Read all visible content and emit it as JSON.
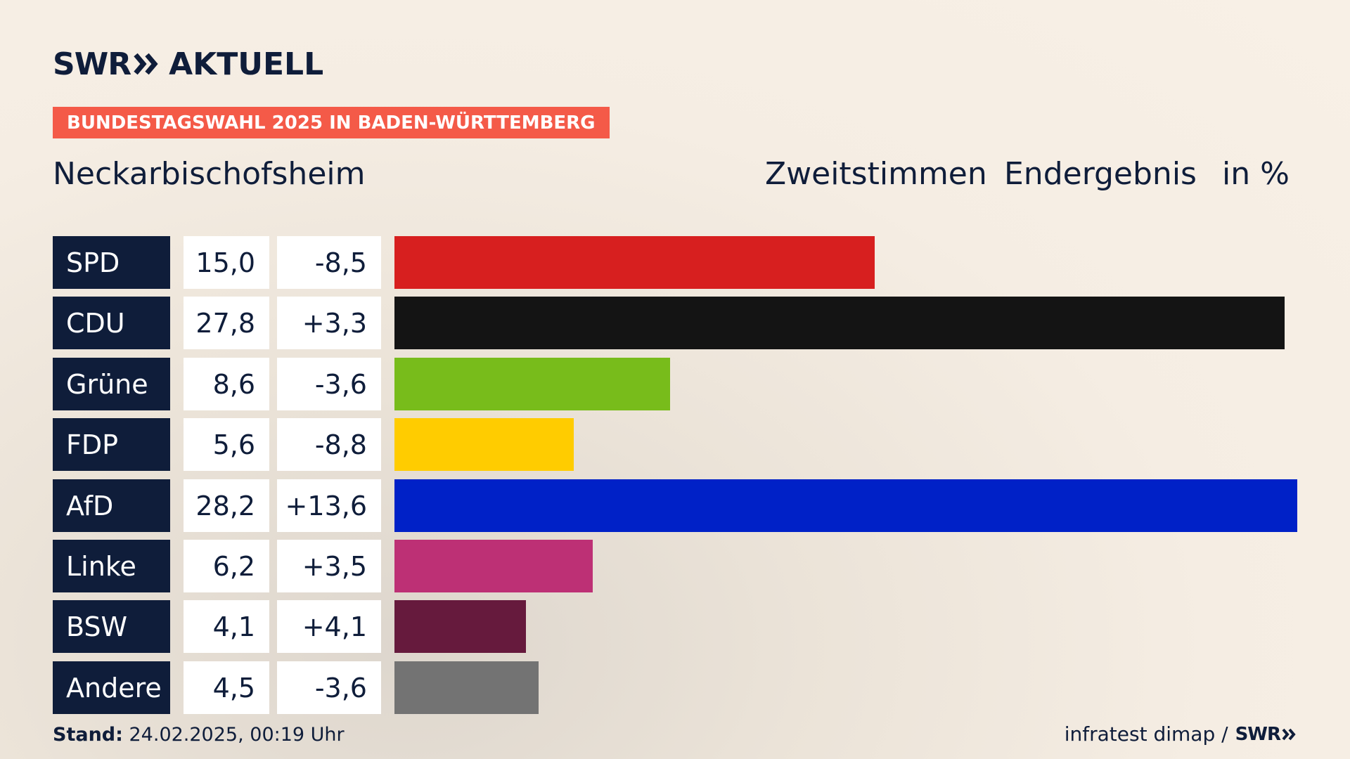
{
  "brand": {
    "swr": "SWR",
    "aktuell": "AKTUELL",
    "text_color": "#0f1d3a"
  },
  "banner": {
    "text": "BUNDESTAGSWAHL 2025 IN BADEN-WÜRTTEMBERG",
    "color": "#f45a48"
  },
  "header": {
    "place": "Neckarbischofsheim",
    "vote_type": "Zweitstimmen",
    "status": "Endergebnis",
    "unit": "in %"
  },
  "chart_data": {
    "type": "bar",
    "orientation": "horizontal",
    "title": "Neckarbischofsheim",
    "categories": [
      "SPD",
      "CDU",
      "Grüne",
      "FDP",
      "AfD",
      "Linke",
      "BSW",
      "Andere"
    ],
    "values": [
      15.0,
      27.8,
      8.6,
      5.6,
      28.2,
      6.2,
      4.1,
      4.5
    ],
    "value_labels": [
      "15,0",
      "27,8",
      "8,6",
      "5,6",
      "28,2",
      "6,2",
      "4,1",
      "4,5"
    ],
    "changes": [
      "-8,5",
      "+3,3",
      "-3,6",
      "-8,8",
      "+13,6",
      "+3,5",
      "+4,1",
      "-3,6"
    ],
    "colors": [
      "#d71f1f",
      "#141414",
      "#78bc1b",
      "#ffcc00",
      "#0021c7",
      "#bd3075",
      "#661a3d",
      "#737373"
    ],
    "xlim": [
      0,
      28.2
    ],
    "grid": false,
    "legend": "none"
  },
  "footer": {
    "stand_label": "Stand:",
    "stand_value": " 24.02.2025, 00:19 Uhr",
    "source": "infratest dimap /",
    "source_brand": "SWR"
  }
}
